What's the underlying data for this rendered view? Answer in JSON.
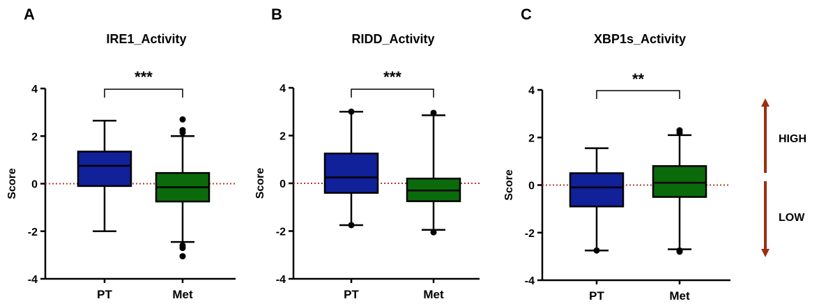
{
  "chart_data": [
    {
      "type": "box",
      "panel": "A",
      "title": "IRE1_Activity",
      "ylabel": "Score",
      "ylim": [
        -4,
        4
      ],
      "yticks": [
        "4",
        "2",
        "0",
        "-2",
        "-4"
      ],
      "categories": [
        "PT",
        "Met"
      ],
      "series": [
        {
          "category": "PT",
          "color": "#10219a",
          "min": -2.0,
          "q1": -0.1,
          "median": 0.75,
          "q3": 1.35,
          "max": 2.65,
          "outliers": []
        },
        {
          "category": "Met",
          "color": "#0b6b0b",
          "min": -2.45,
          "q1": -0.75,
          "median": -0.15,
          "q3": 0.45,
          "max": 2.0,
          "outliers": [
            2.7,
            2.25,
            2.15,
            -2.6,
            -2.7,
            -3.05
          ]
        }
      ],
      "significance": "***",
      "reference_line": 0
    },
    {
      "type": "box",
      "panel": "B",
      "title": "RIDD_Activity",
      "ylabel": "Score",
      "ylim": [
        -4,
        4
      ],
      "yticks": [
        "4",
        "2",
        "0",
        "-2",
        "-4"
      ],
      "categories": [
        "PT",
        "Met"
      ],
      "series": [
        {
          "category": "PT",
          "color": "#10219a",
          "min": -1.75,
          "q1": -0.4,
          "median": 0.25,
          "q3": 1.25,
          "max": 3.0,
          "outliers": [
            3.0,
            -1.75
          ]
        },
        {
          "category": "Met",
          "color": "#0b6b0b",
          "min": -1.95,
          "q1": -0.75,
          "median": -0.3,
          "q3": 0.2,
          "max": 2.85,
          "outliers": [
            2.95,
            -2.05
          ]
        }
      ],
      "significance": "***",
      "reference_line": 0
    },
    {
      "type": "box",
      "panel": "C",
      "title": "XBP1s_Activity",
      "ylabel": "Score",
      "ylim": [
        -4,
        4
      ],
      "yticks": [
        "4",
        "2",
        "0",
        "-2",
        "-4"
      ],
      "categories": [
        "PT",
        "Met"
      ],
      "series": [
        {
          "category": "PT",
          "color": "#10219a",
          "min": -2.75,
          "q1": -0.9,
          "median": -0.1,
          "q3": 0.5,
          "max": 1.55,
          "outliers": [
            -2.75
          ]
        },
        {
          "category": "Met",
          "color": "#0b6b0b",
          "min": -2.7,
          "q1": -0.5,
          "median": 0.1,
          "q3": 0.8,
          "max": 2.1,
          "outliers": [
            2.3,
            2.2,
            -2.75,
            -2.8
          ]
        }
      ],
      "significance": "**",
      "reference_line": 0
    }
  ],
  "side_labels": {
    "high": "HIGH",
    "low": "LOW",
    "arrow_color": "#9b2f10"
  },
  "colors": {
    "reference_line": "#b03a2e"
  }
}
